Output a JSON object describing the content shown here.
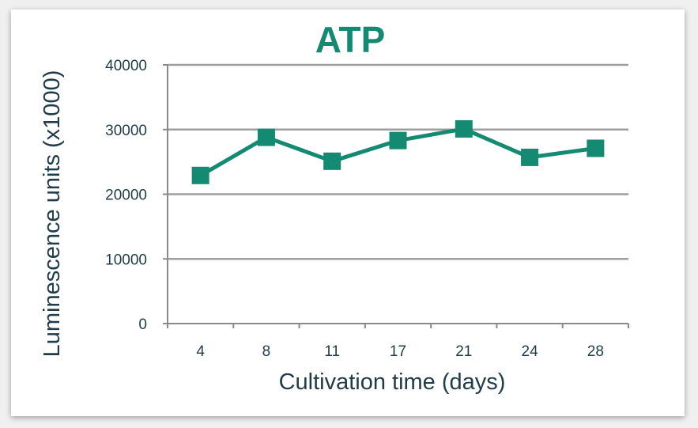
{
  "chart_data": {
    "type": "line",
    "title": "ATP",
    "xlabel": "Cultivation time (days)",
    "ylabel": "Luminescence units (x1000)",
    "categories": [
      "4",
      "8",
      "11",
      "17",
      "21",
      "24",
      "28"
    ],
    "series": [
      {
        "values": [
          22900,
          28800,
          25100,
          28300,
          30100,
          25700,
          27100
        ]
      }
    ],
    "y_ticks": [
      "0",
      "10000",
      "20000",
      "30000",
      "40000"
    ],
    "ylim": [
      0,
      40000
    ],
    "grid": true,
    "legend": "none",
    "colors": {
      "series": "#148a72",
      "title": "#148a72",
      "text": "#1f3c48",
      "grid": "#9e9e9e",
      "axis": "#8a8a8a"
    },
    "marker": "square"
  }
}
